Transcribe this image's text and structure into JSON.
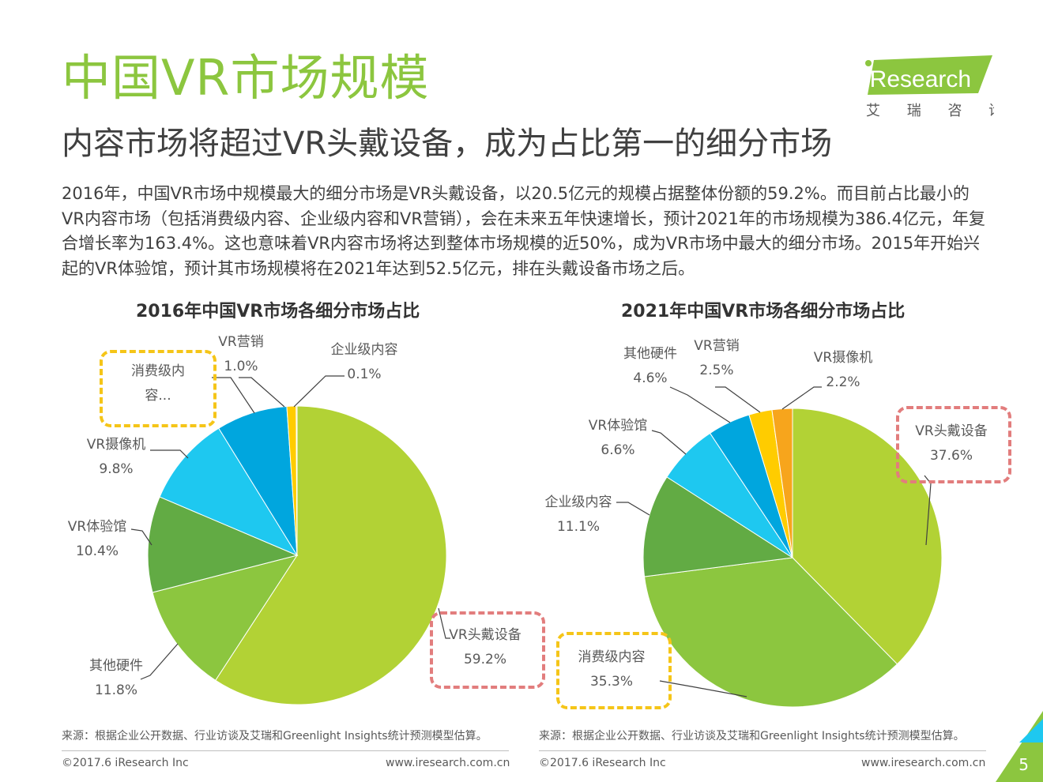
{
  "header": {
    "title": "中国VR市场规模",
    "subtitle": "内容市场将超过VR头戴设备，成为占比第一的细分市场",
    "body": "2016年，中国VR市场中规模最大的细分市场是VR头戴设备，以20.5亿元的规模占据整体份额的59.2%。而目前占比最小的VR内容市场（包括消费级内容、企业级内容和VR营销），会在未来五年快速增长，预计2021年的市场规模为386.4亿元，年复合增长率为163.4%。这也意味着VR内容市场将达到整体市场规模的近50%，成为VR市场中最大的细分市场。2015年开始兴起的VR体验馆，预计其市场规模将在2021年达到52.5亿元，排在头戴设备市场之后。"
  },
  "logo": {
    "brand": "iResearch",
    "cn": "艾 瑞 咨 询",
    "color": "#8cc63f"
  },
  "chart_data": [
    {
      "type": "pie",
      "title": "2016年中国VR市场各细分市场占比",
      "start": "12 o'clock, clockwise",
      "slices": [
        {
          "name": "VR头戴设备",
          "value": 59.2,
          "label": "59.2%",
          "color": "#b2d235"
        },
        {
          "name": "其他硬件",
          "value": 11.8,
          "label": "11.8%",
          "color": "#8cc63f"
        },
        {
          "name": "VR体验馆",
          "value": 10.4,
          "label": "10.4%",
          "color": "#62ab44"
        },
        {
          "name": "VR摄像机",
          "value": 9.8,
          "label": "9.8%",
          "color": "#1ec8f0"
        },
        {
          "name": "消费级内容...",
          "value": 7.7,
          "label": "",
          "color": "#00a6de"
        },
        {
          "name": "VR营销",
          "value": 1.0,
          "label": "1.0%",
          "color": "#ffcc00"
        },
        {
          "name": "企业级内容",
          "value": 0.1,
          "label": "0.1%",
          "color": "#f7a51c"
        }
      ]
    },
    {
      "type": "pie",
      "title": "2021年中国VR市场各细分市场占比",
      "start": "12 o'clock, clockwise",
      "slices": [
        {
          "name": "VR头戴设备",
          "value": 37.6,
          "label": "37.6%",
          "color": "#b2d235"
        },
        {
          "name": "消费级内容",
          "value": 35.3,
          "label": "35.3%",
          "color": "#8cc63f"
        },
        {
          "name": "企业级内容",
          "value": 11.1,
          "label": "11.1%",
          "color": "#62ab44"
        },
        {
          "name": "VR体验馆",
          "value": 6.6,
          "label": "6.6%",
          "color": "#1ec8f0"
        },
        {
          "name": "其他硬件",
          "value": 4.6,
          "label": "4.6%",
          "color": "#00a6de"
        },
        {
          "name": "VR营销",
          "value": 2.5,
          "label": "2.5%",
          "color": "#ffcc00"
        },
        {
          "name": "VR摄像机",
          "value": 2.2,
          "label": "2.2%",
          "color": "#f7a51c"
        }
      ]
    }
  ],
  "highlight_colors": {
    "red_box": "#e27d7d",
    "yellow_box": "#f5c518"
  },
  "footer": {
    "source": "来源：根据企业公开数据、行业访谈及艾瑞和Greenlight Insights统计预测模型估算。",
    "copyright": "©2017.6 iResearch Inc",
    "url": "www.iresearch.com.cn",
    "page": "5",
    "corner_color_1": "#8cc63f",
    "corner_color_2": "#1ec8f0"
  }
}
